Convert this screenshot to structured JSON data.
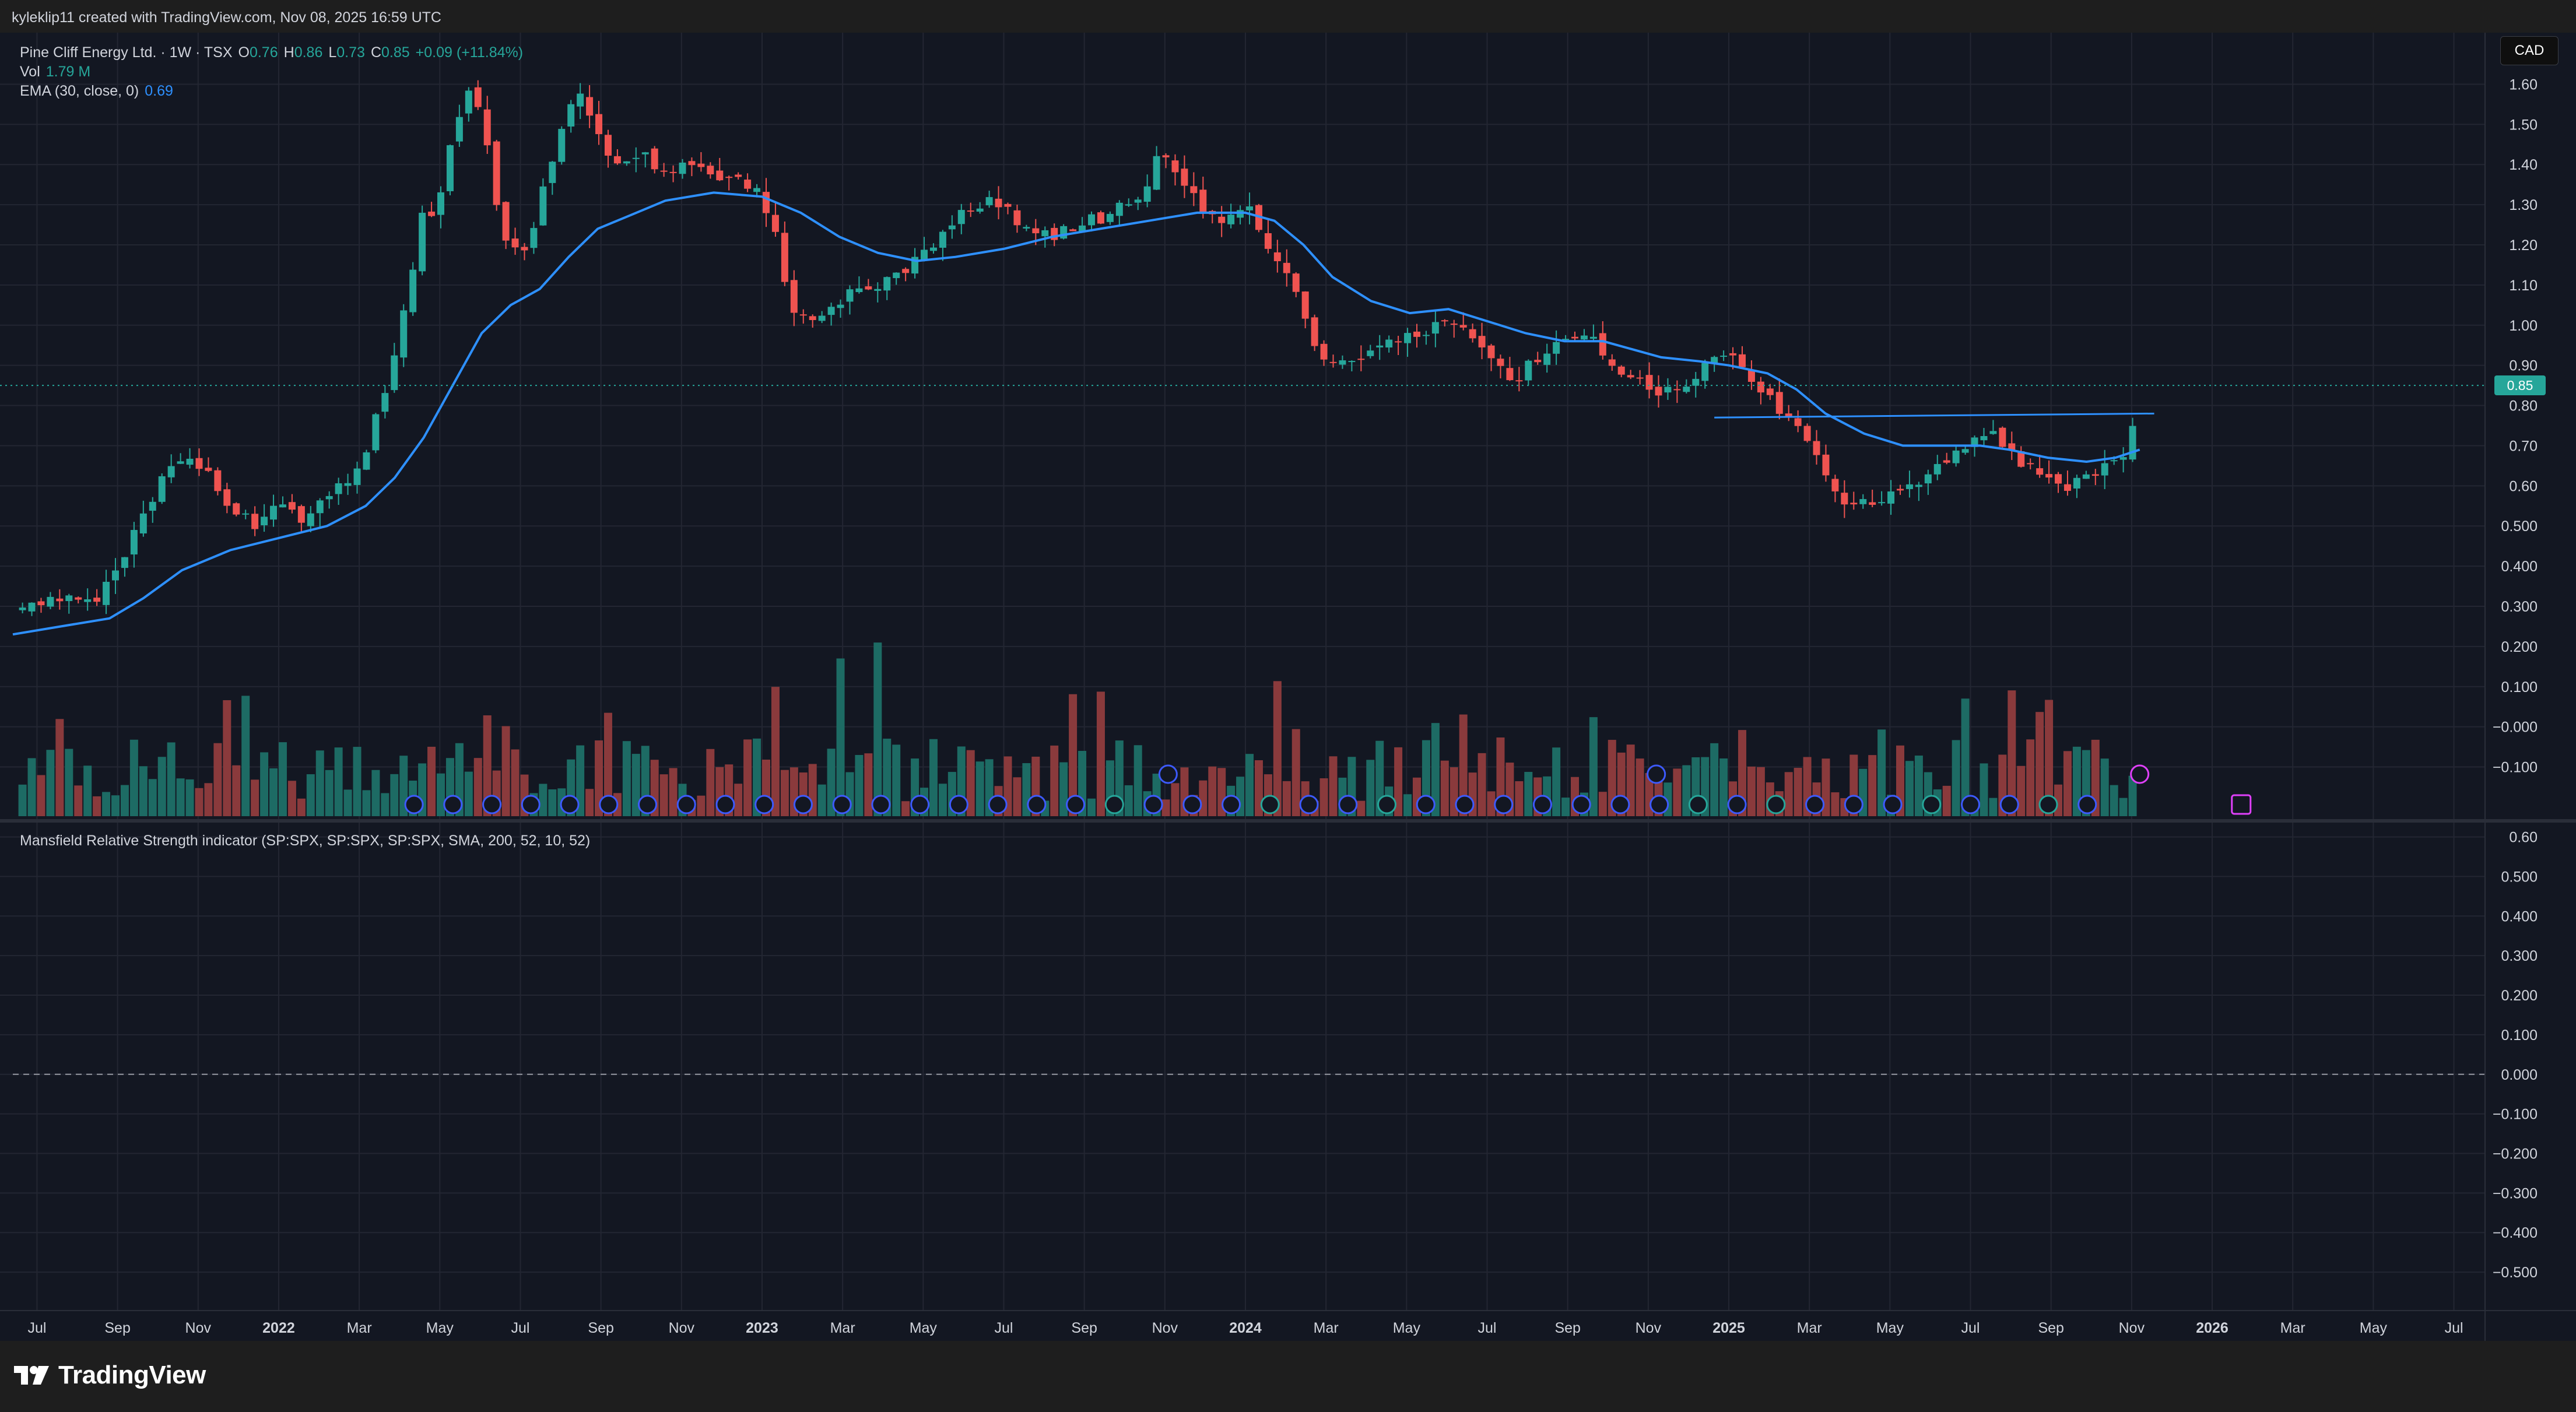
{
  "header": {
    "credit": "kyleklip11 created with TradingView.com, Nov 08, 2025 16:59 UTC"
  },
  "footer": {
    "brand": "TradingView"
  },
  "currency_button": "CAD",
  "legend": {
    "symbol": "Pine Cliff Energy Ltd. · 1W · TSX",
    "o_label": "O",
    "o_value": "0.76",
    "h_label": "H",
    "h_value": "0.86",
    "l_label": "L",
    "l_value": "0.73",
    "c_label": "C",
    "c_value": "0.85",
    "change": "+0.09 (+11.84%)",
    "vol_label": "Vol",
    "vol_value": "1.79 M",
    "ema_label": "EMA (30, close, 0)",
    "ema_value": "0.69"
  },
  "indicator_label": "Mansfield Relative Strength indicator (SP:SPX, SP:SPX, SP:SPX, SMA, 200, 52, 10, 52)",
  "last_price_tag": "0.85",
  "colors": {
    "up": "#26a69a",
    "down": "#ef5350",
    "ema": "#2e90ff",
    "vol_up": "#1d6b64",
    "vol_down": "#8a3a3c",
    "background": "#131722",
    "grid": "#232632"
  },
  "chart_data": [
    {
      "type": "candlestick",
      "title": "",
      "ylim": [
        -0.15,
        1.65
      ],
      "y_ticks": [
        "1.60",
        "1.50",
        "1.40",
        "1.30",
        "1.20",
        "1.10",
        "1.00",
        "0.90",
        "0.80",
        "0.70",
        "0.60",
        "0.500",
        "0.400",
        "0.300",
        "0.200",
        "0.100",
        "−0.000",
        "−0.100"
      ],
      "x_ticks": [
        "Jul",
        "Sep",
        "Nov",
        "2022",
        "Mar",
        "May",
        "Jul",
        "Sep",
        "Nov",
        "2023",
        "Mar",
        "May",
        "Jul",
        "Sep",
        "Nov",
        "2024",
        "Mar",
        "May",
        "Jul",
        "Sep",
        "Nov",
        "2025",
        "Mar",
        "May",
        "Jul",
        "Sep",
        "Nov",
        "2026",
        "Mar",
        "May",
        "Jul"
      ],
      "x_bold": [
        "2022",
        "2023",
        "2024",
        "2025",
        "2026"
      ],
      "close_path": [
        [
          2021.48,
          0.3
        ],
        [
          2021.55,
          0.31
        ],
        [
          2021.62,
          0.32
        ],
        [
          2021.66,
          0.38
        ],
        [
          2021.7,
          0.48
        ],
        [
          2021.76,
          0.62
        ],
        [
          2021.8,
          0.68
        ],
        [
          2021.85,
          0.63
        ],
        [
          2021.88,
          0.58
        ],
        [
          2021.92,
          0.52
        ],
        [
          2021.96,
          0.5
        ],
        [
          2022.0,
          0.55
        ],
        [
          2022.05,
          0.52
        ],
        [
          2022.1,
          0.58
        ],
        [
          2022.15,
          0.62
        ],
        [
          2022.19,
          0.72
        ],
        [
          2022.23,
          0.88
        ],
        [
          2022.27,
          1.1
        ],
        [
          2022.3,
          1.3
        ],
        [
          2022.33,
          1.28
        ],
        [
          2022.36,
          1.48
        ],
        [
          2022.4,
          1.6
        ],
        [
          2022.43,
          1.45
        ],
        [
          2022.46,
          1.25
        ],
        [
          2022.5,
          1.15
        ],
        [
          2022.54,
          1.3
        ],
        [
          2022.58,
          1.48
        ],
        [
          2022.62,
          1.58
        ],
        [
          2022.66,
          1.48
        ],
        [
          2022.7,
          1.4
        ],
        [
          2022.75,
          1.42
        ],
        [
          2022.8,
          1.38
        ],
        [
          2022.86,
          1.4
        ],
        [
          2022.92,
          1.36
        ],
        [
          2022.98,
          1.35
        ],
        [
          2023.02,
          1.26
        ],
        [
          2023.06,
          1.05
        ],
        [
          2023.1,
          1.02
        ],
        [
          2023.15,
          1.06
        ],
        [
          2023.2,
          1.08
        ],
        [
          2023.25,
          1.1
        ],
        [
          2023.3,
          1.14
        ],
        [
          2023.35,
          1.2
        ],
        [
          2023.42,
          1.28
        ],
        [
          2023.48,
          1.32
        ],
        [
          2023.54,
          1.24
        ],
        [
          2023.6,
          1.22
        ],
        [
          2023.66,
          1.25
        ],
        [
          2023.72,
          1.28
        ],
        [
          2023.78,
          1.32
        ],
        [
          2023.83,
          1.44
        ],
        [
          2023.86,
          1.38
        ],
        [
          2023.9,
          1.3
        ],
        [
          2023.95,
          1.25
        ],
        [
          2024.0,
          1.3
        ],
        [
          2024.05,
          1.2
        ],
        [
          2024.1,
          1.08
        ],
        [
          2024.16,
          0.9
        ],
        [
          2024.22,
          0.92
        ],
        [
          2024.28,
          0.95
        ],
        [
          2024.35,
          0.98
        ],
        [
          2024.4,
          1.0
        ],
        [
          2024.45,
          0.98
        ],
        [
          2024.5,
          0.92
        ],
        [
          2024.55,
          0.86
        ],
        [
          2024.6,
          0.92
        ],
        [
          2024.65,
          0.96
        ],
        [
          2024.7,
          0.98
        ],
        [
          2024.75,
          0.92
        ],
        [
          2024.8,
          0.86
        ],
        [
          2024.86,
          0.84
        ],
        [
          2024.92,
          0.86
        ],
        [
          2024.96,
          0.92
        ],
        [
          2025.0,
          0.93
        ],
        [
          2025.05,
          0.86
        ],
        [
          2025.1,
          0.8
        ],
        [
          2025.15,
          0.73
        ],
        [
          2025.2,
          0.62
        ],
        [
          2025.25,
          0.55
        ],
        [
          2025.3,
          0.56
        ],
        [
          2025.36,
          0.58
        ],
        [
          2025.42,
          0.64
        ],
        [
          2025.48,
          0.68
        ],
        [
          2025.53,
          0.74
        ],
        [
          2025.57,
          0.7
        ],
        [
          2025.62,
          0.64
        ],
        [
          2025.66,
          0.61
        ],
        [
          2025.7,
          0.6
        ],
        [
          2025.75,
          0.63
        ],
        [
          2025.8,
          0.66
        ],
        [
          2025.83,
          0.7
        ],
        [
          2025.85,
          0.85
        ]
      ],
      "ema_path": [
        [
          2021.45,
          0.23
        ],
        [
          2021.55,
          0.25
        ],
        [
          2021.65,
          0.27
        ],
        [
          2021.72,
          0.32
        ],
        [
          2021.8,
          0.39
        ],
        [
          2021.9,
          0.44
        ],
        [
          2022.0,
          0.47
        ],
        [
          2022.1,
          0.5
        ],
        [
          2022.18,
          0.55
        ],
        [
          2022.24,
          0.62
        ],
        [
          2022.3,
          0.72
        ],
        [
          2022.36,
          0.85
        ],
        [
          2022.42,
          0.98
        ],
        [
          2022.48,
          1.05
        ],
        [
          2022.54,
          1.09
        ],
        [
          2022.6,
          1.17
        ],
        [
          2022.66,
          1.24
        ],
        [
          2022.72,
          1.27
        ],
        [
          2022.8,
          1.31
        ],
        [
          2022.9,
          1.33
        ],
        [
          2023.0,
          1.32
        ],
        [
          2023.08,
          1.28
        ],
        [
          2023.16,
          1.22
        ],
        [
          2023.24,
          1.18
        ],
        [
          2023.32,
          1.16
        ],
        [
          2023.4,
          1.17
        ],
        [
          2023.5,
          1.19
        ],
        [
          2023.6,
          1.22
        ],
        [
          2023.7,
          1.24
        ],
        [
          2023.8,
          1.26
        ],
        [
          2023.9,
          1.28
        ],
        [
          2024.0,
          1.28
        ],
        [
          2024.06,
          1.26
        ],
        [
          2024.12,
          1.2
        ],
        [
          2024.18,
          1.12
        ],
        [
          2024.26,
          1.06
        ],
        [
          2024.34,
          1.03
        ],
        [
          2024.42,
          1.04
        ],
        [
          2024.5,
          1.01
        ],
        [
          2024.58,
          0.98
        ],
        [
          2024.66,
          0.96
        ],
        [
          2024.74,
          0.96
        ],
        [
          2024.8,
          0.94
        ],
        [
          2024.86,
          0.92
        ],
        [
          2024.94,
          0.91
        ],
        [
          2025.0,
          0.9
        ],
        [
          2025.08,
          0.88
        ],
        [
          2025.14,
          0.84
        ],
        [
          2025.2,
          0.78
        ],
        [
          2025.28,
          0.73
        ],
        [
          2025.36,
          0.7
        ],
        [
          2025.44,
          0.7
        ],
        [
          2025.52,
          0.7
        ],
        [
          2025.58,
          0.69
        ],
        [
          2025.66,
          0.67
        ],
        [
          2025.74,
          0.66
        ],
        [
          2025.8,
          0.67
        ],
        [
          2025.85,
          0.69
        ]
      ],
      "trendline": [
        [
          2024.97,
          0.77
        ],
        [
          2025.88,
          0.78
        ]
      ],
      "last_price": 0.85
    },
    {
      "type": "line",
      "title": "",
      "ylim": [
        -0.55,
        0.62
      ],
      "y_ticks": [
        "0.60",
        "0.500",
        "0.400",
        "0.300",
        "0.200",
        "0.100",
        "0.000",
        "−0.100",
        "−0.200",
        "−0.300",
        "−0.400",
        "−0.500"
      ],
      "zero_line": 0.0
    }
  ]
}
